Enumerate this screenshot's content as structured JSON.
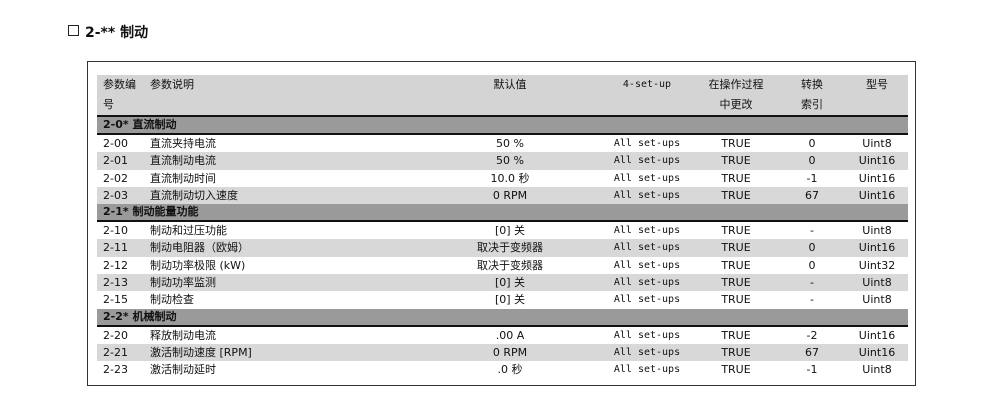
{
  "title": "2-** 制动",
  "header": {
    "code": "参数编",
    "code2": "号",
    "desc": "参数说明",
    "default": "默认值",
    "setup": "4-set-up",
    "change": "在操作过程",
    "change2": "中更改",
    "conv": "转换",
    "conv2": "索引",
    "type": "型号"
  },
  "groups": [
    {
      "title": "2-0* 直流制动",
      "rows": [
        [
          "2-00",
          "直流夹持电流",
          "50 %",
          "All set-ups",
          "TRUE",
          "0",
          "Uint8"
        ],
        [
          "2-01",
          "直流制动电流",
          "50 %",
          "All set-ups",
          "TRUE",
          "0",
          "Uint16"
        ],
        [
          "2-02",
          "直流制动时间",
          "10.0 秒",
          "All set-ups",
          "TRUE",
          "-1",
          "Uint16"
        ],
        [
          "2-03",
          "直流制动切入速度",
          "0 RPM",
          "All set-ups",
          "TRUE",
          "67",
          "Uint16"
        ]
      ]
    },
    {
      "title": "2-1* 制动能量功能",
      "rows": [
        [
          "2-10",
          "制动和过压功能",
          "[0] 关",
          "All set-ups",
          "TRUE",
          "-",
          "Uint8"
        ],
        [
          "2-11",
          "制动电阻器（欧姆）",
          "取决于变频器",
          "All set-ups",
          "TRUE",
          "0",
          "Uint16"
        ],
        [
          "2-12",
          "制动功率极限 (kW)",
          "取决于变频器",
          "All set-ups",
          "TRUE",
          "0",
          "Uint32"
        ],
        [
          "2-13",
          "制动功率监测",
          "[0] 关",
          "All set-ups",
          "TRUE",
          "-",
          "Uint8"
        ],
        [
          "2-15",
          "制动检查",
          "[0] 关",
          "All set-ups",
          "TRUE",
          "-",
          "Uint8"
        ]
      ]
    },
    {
      "title": "2-2* 机械制动",
      "rows": [
        [
          "2-20",
          "释放制动电流",
          ".00 A",
          "All set-ups",
          "TRUE",
          "-2",
          "Uint16"
        ],
        [
          "2-21",
          "激活制动速度 [RPM]",
          "0 RPM",
          "All set-ups",
          "TRUE",
          "67",
          "Uint16"
        ],
        [
          "2-23",
          "激活制动延时",
          ".0 秒",
          "All set-ups",
          "TRUE",
          "-1",
          "Uint8"
        ]
      ]
    }
  ]
}
